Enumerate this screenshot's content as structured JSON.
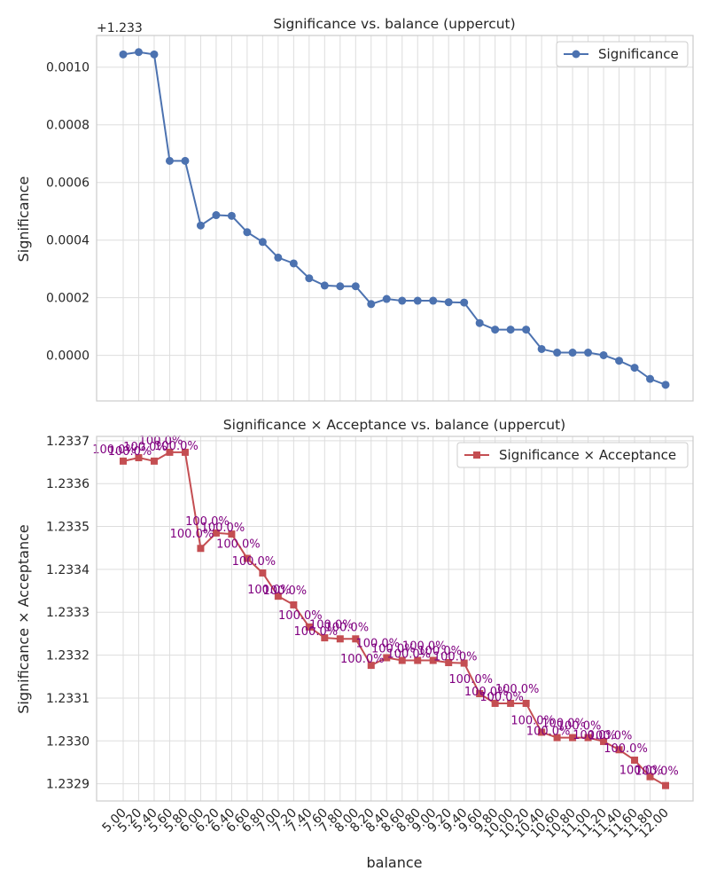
{
  "chart_data": [
    {
      "type": "line",
      "title": "Significance vs. balance (uppercut)",
      "ylabel": "Significance",
      "xlabel": "",
      "offset_label": "+1.233",
      "ylim": [
        -0.000158,
        0.00111
      ],
      "yticks": [
        0.0,
        0.0002,
        0.0004,
        0.0006,
        0.0008,
        0.001
      ],
      "ytick_labels": [
        "0.0000",
        "0.0002",
        "0.0004",
        "0.0006",
        "0.0008",
        "0.0010"
      ],
      "legend_position": "top-right",
      "grid": true,
      "series": [
        {
          "name": "Significance",
          "color": "#4c72b0",
          "marker": "circle",
          "values": [
            1.2340443,
            1.2340523,
            1.2340443,
            1.2336749,
            1.2336749,
            1.2334508,
            1.2334867,
            1.2334842,
            1.2334275,
            1.2333935,
            1.2333393,
            1.2333191,
            1.2332676,
            1.2332423,
            1.2332398,
            1.2332398,
            1.2331781,
            1.2331959,
            1.2331896,
            1.2331896,
            1.2331896,
            1.2331845,
            1.2331833,
            1.2331121,
            1.2330895,
            1.2330895,
            1.2330895,
            1.2330222,
            1.2330096,
            1.2330096,
            1.2330096,
            1.2330006,
            1.2329813,
            1.2329571,
            1.2329185,
            1.2328978
          ]
        }
      ]
    },
    {
      "type": "line",
      "title": "Significance × Acceptance vs. balance (uppercut)",
      "ylabel": "Significance × Acceptance",
      "xlabel": "balance",
      "ylim": [
        1.23286,
        1.23371
      ],
      "yticks": [
        1.2329,
        1.233,
        1.2331,
        1.2332,
        1.2333,
        1.2334,
        1.2335,
        1.2336,
        1.2337
      ],
      "ytick_labels": [
        "1.2329",
        "1.2330",
        "1.2331",
        "1.2332",
        "1.2333",
        "1.2334",
        "1.2335",
        "1.2336",
        "1.2337"
      ],
      "legend_position": "top-right",
      "grid": true,
      "point_label": "100.0%",
      "series": [
        {
          "name": "Significance × Acceptance",
          "color": "#c44e52",
          "marker": "square",
          "values": [
            1.2336524,
            1.2336604,
            1.2336524,
            1.233673,
            1.233673,
            1.2334489,
            1.2334848,
            1.2334823,
            1.2334256,
            1.2333916,
            1.2333374,
            1.2333172,
            1.2332657,
            1.2332404,
            1.2332379,
            1.2332379,
            1.2331762,
            1.233194,
            1.2331877,
            1.2331877,
            1.2331877,
            1.2331826,
            1.2331814,
            1.2331102,
            1.2330876,
            1.2330876,
            1.2330876,
            1.2330203,
            1.2330077,
            1.2330077,
            1.2330077,
            1.2329987,
            1.2329794,
            1.2329552,
            1.2329166,
            1.2328959
          ]
        }
      ]
    }
  ],
  "x_categories": [
    "5.00",
    "5.20",
    "5.40",
    "5.60",
    "5.80",
    "6.00",
    "6.20",
    "6.40",
    "6.60",
    "6.80",
    "7.00",
    "7.20",
    "7.40",
    "7.60",
    "7.80",
    "8.00",
    "8.20",
    "8.40",
    "8.60",
    "8.80",
    "9.00",
    "9.20",
    "9.40",
    "9.60",
    "9.80",
    "10.00",
    "10.20",
    "10.40",
    "10.60",
    "10.80",
    "11.00",
    "11.20",
    "11.40",
    "11.60",
    "11.80",
    "12.00"
  ]
}
